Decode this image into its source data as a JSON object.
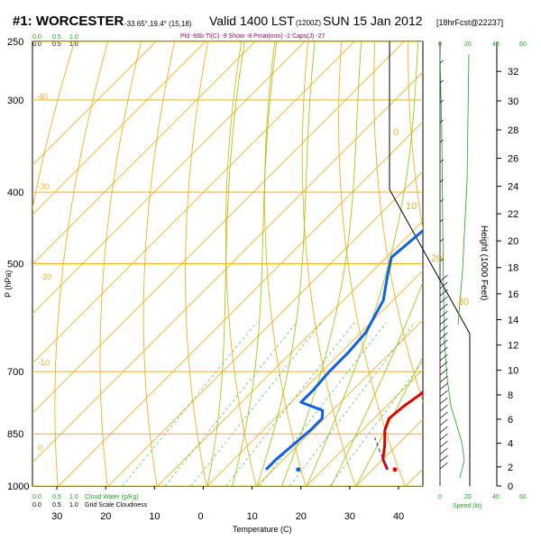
{
  "header": {
    "station": "#1: WORCESTER",
    "coords": "-33.65°,19.4° (15,18)",
    "valid": "Valid 1400 LST",
    "utc": "(1200Z)",
    "date": "SUN 15 Jan 2012",
    "forecast": "[18hrFcst@22237]",
    "indices": "Pld -66b  Tl(C) -9  Show -8  Pmat(mm) -2  Caps(J) -27"
  },
  "cloud_scale_top": [
    "0.0",
    "0.5",
    "1.0"
  ],
  "cloud_scale_top_green": [
    "0.0",
    "0.5",
    "1.0"
  ],
  "bottom_labels": {
    "cloud_water_prefix": [
      "0.0",
      "0.5",
      "1.0"
    ],
    "cloud_water": "Cloud Water (g/Kg)",
    "grid_cloud_prefix": [
      "0.0",
      "0.5",
      "1.0"
    ],
    "grid_cloud": "Grid Scale Cloudiness",
    "speed": "Speed (kt)",
    "speed_ticks": [
      "0",
      "20",
      "40",
      "60"
    ],
    "speed_ticks_top": [
      "0",
      "20",
      "40",
      "60"
    ]
  },
  "colors": {
    "temperature": "#e00000",
    "dewpoint": "#1060e0",
    "isotherm": "#f0b020",
    "dry_adiabat": "#f0b020",
    "moist_adiabat": "#90c800",
    "mixing_ratio": "#60c060",
    "wind_profile": "#20a020",
    "title": "#000000",
    "indices": "#a00060"
  },
  "chart_data": {
    "type": "line",
    "title": "#1: WORCESTER",
    "xlabel": "Temperature (C)",
    "ylabel": "P (hPa)",
    "y2label": "Height (1000 Feet)",
    "xlim": [
      -35,
      45
    ],
    "ylim_hpa": [
      1000,
      250
    ],
    "x_ticks": [
      -30,
      -20,
      -10,
      0,
      10,
      20,
      30,
      40
    ],
    "x_tick_labels": [
      "30",
      "20",
      "10",
      "0",
      "10",
      "20",
      "30",
      "40"
    ],
    "p_ticks": [
      250,
      300,
      400,
      500,
      700,
      850,
      1000
    ],
    "height_ticks_kft": [
      0,
      2,
      4,
      6,
      8,
      10,
      12,
      14,
      16,
      18,
      20,
      22,
      24,
      26,
      28,
      30,
      32
    ],
    "mixing_ratio_labels": [
      "1",
      "2",
      "3",
      "5",
      "8",
      "12",
      "20"
    ],
    "dry_adiabat_labels": [
      "-40",
      "-30",
      "-20",
      "-10",
      "0",
      "10",
      "20",
      "30"
    ],
    "series": [
      {
        "name": "Temperature",
        "points": [
          [
            33.0,
            950
          ],
          [
            30,
            920
          ],
          [
            27.5,
            880
          ],
          [
            24.5,
            840
          ],
          [
            23.0,
            810
          ],
          [
            23.5,
            780
          ],
          [
            24.5,
            750
          ],
          [
            24.3,
            720
          ],
          [
            23.0,
            690
          ],
          [
            21.5,
            650
          ],
          [
            19.5,
            600
          ],
          [
            17.5,
            550
          ],
          [
            15.5,
            500
          ],
          [
            13.5,
            460
          ],
          [
            11.5,
            420
          ],
          [
            9.5,
            390
          ],
          [
            7.0,
            360
          ],
          [
            4.5,
            330
          ],
          [
            2.5,
            300
          ],
          [
            1.0,
            280
          ],
          [
            0.5,
            265
          ]
        ]
      },
      {
        "name": "Dewpoint",
        "points": [
          [
            8.5,
            950
          ],
          [
            8.5,
            920
          ],
          [
            9.0,
            880
          ],
          [
            9.5,
            840
          ],
          [
            9.5,
            810
          ],
          [
            8.0,
            790
          ],
          [
            2.0,
            770
          ],
          [
            2.0,
            740
          ],
          [
            1.5,
            700
          ],
          [
            1.5,
            660
          ],
          [
            1.0,
            620
          ],
          [
            -2.0,
            560
          ],
          [
            -6.0,
            520
          ],
          [
            -9.0,
            490
          ],
          [
            -8.0,
            450
          ],
          [
            -7.0,
            420
          ],
          [
            -6.5,
            390
          ],
          [
            -5.5,
            360
          ],
          [
            -6.5,
            330
          ],
          [
            -7.0,
            300
          ],
          [
            -7.0,
            280
          ],
          [
            -6.5,
            265
          ]
        ]
      }
    ]
  }
}
